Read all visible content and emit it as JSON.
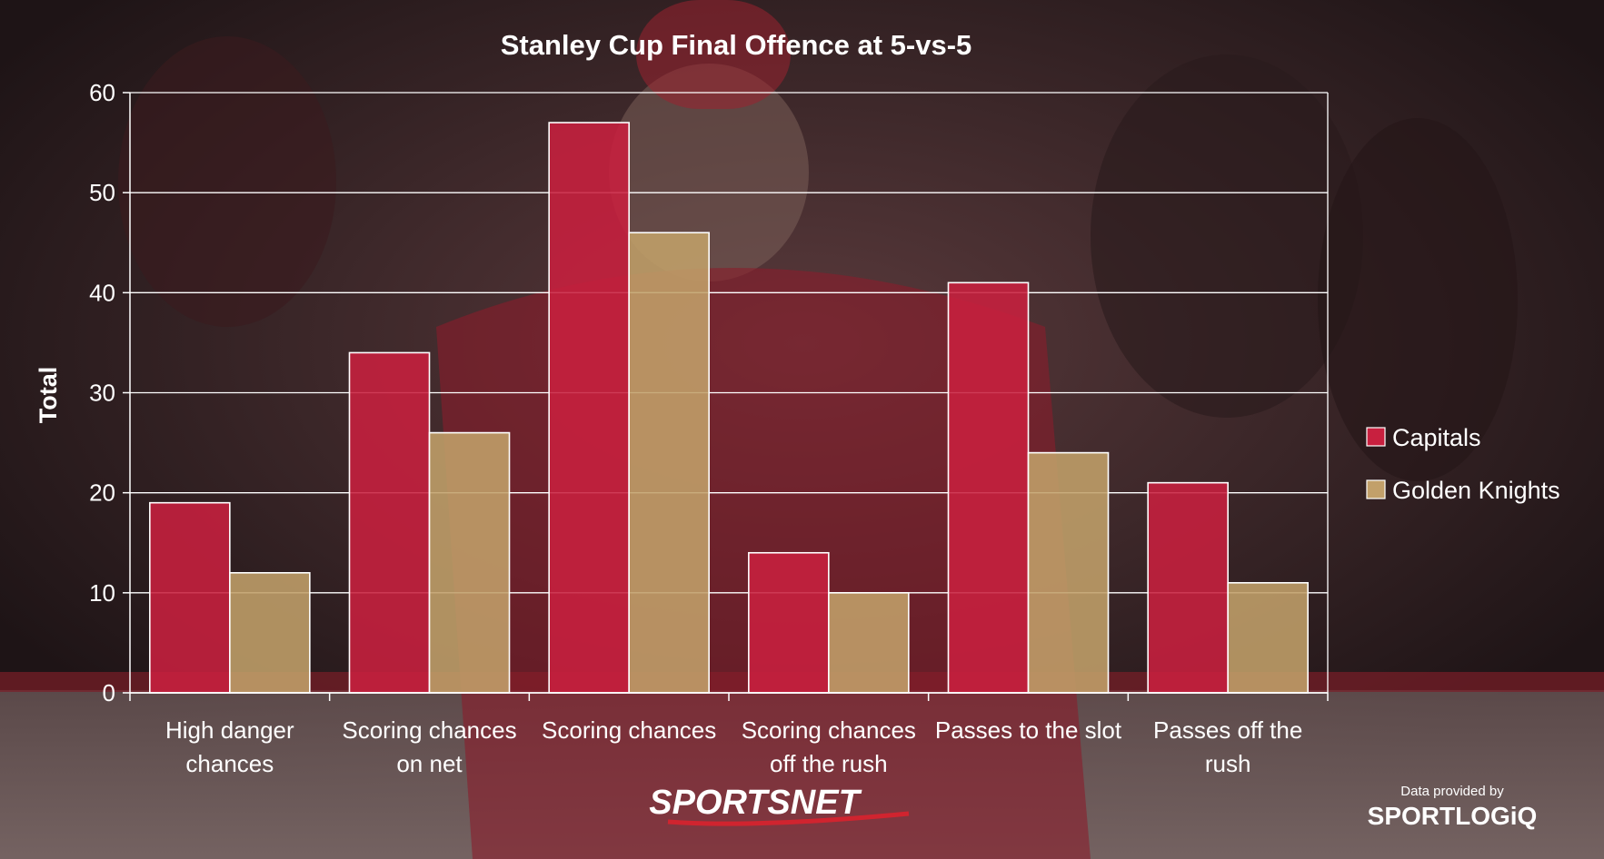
{
  "colors": {
    "capitals": "#c8203f",
    "golden_knights": "#c2a06a",
    "grid": "#ffffff",
    "text": "#ffffff"
  },
  "chart_data": {
    "type": "bar",
    "title": "Stanley Cup Final Offence at 5-vs-5",
    "ylabel": "Total",
    "xlabel": "",
    "ylim": [
      0,
      60
    ],
    "yticks": [
      0,
      10,
      20,
      30,
      40,
      50,
      60
    ],
    "grid": true,
    "legend_position": "right",
    "categories": [
      [
        "High danger",
        "chances"
      ],
      [
        "Scoring chances",
        "on net"
      ],
      [
        "Scoring chances"
      ],
      [
        "Scoring chances",
        "off the rush"
      ],
      [
        "Passes to the slot"
      ],
      [
        "Passes off the",
        "rush"
      ]
    ],
    "series": [
      {
        "name": "Capitals",
        "color": "#c8203f",
        "values": [
          19,
          34,
          57,
          14,
          41,
          21
        ]
      },
      {
        "name": "Golden Knights",
        "color": "#c2a06a",
        "values": [
          12,
          26,
          46,
          10,
          24,
          11
        ]
      }
    ]
  },
  "branding": {
    "logo": "SPORTSNET",
    "credit_line": "Data provided by",
    "credit_logo": "SPORTLOGiQ"
  }
}
